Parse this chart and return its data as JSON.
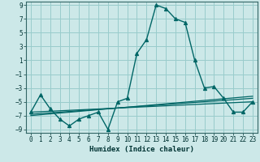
{
  "title": "",
  "xlabel": "Humidex (Indice chaleur)",
  "background_color": "#cce8e8",
  "grid_color": "#99cccc",
  "line_color": "#006666",
  "xlim": [
    -0.5,
    23.5
  ],
  "ylim": [
    -9.5,
    9.5
  ],
  "xticks": [
    0,
    1,
    2,
    3,
    4,
    5,
    6,
    7,
    8,
    9,
    10,
    11,
    12,
    13,
    14,
    15,
    16,
    17,
    18,
    19,
    20,
    21,
    22,
    23
  ],
  "yticks": [
    -9,
    -7,
    -5,
    -3,
    -1,
    1,
    3,
    5,
    7,
    9
  ],
  "x": [
    0,
    1,
    2,
    3,
    4,
    5,
    6,
    7,
    8,
    9,
    10,
    11,
    12,
    13,
    14,
    15,
    16,
    17,
    18,
    19,
    20,
    21,
    22,
    23
  ],
  "line_main": [
    -6.5,
    -4.0,
    -6.0,
    -7.5,
    -8.5,
    -7.5,
    -7.0,
    -6.5,
    -9.0,
    -5.0,
    -4.5,
    2.0,
    4.0,
    9.0,
    8.5,
    7.0,
    6.5,
    1.0,
    -3.0,
    -2.8,
    -4.5,
    -6.5,
    -6.5,
    -5.0
  ],
  "trend1_x": [
    0,
    23
  ],
  "trend1_y": [
    -6.5,
    -5.0
  ],
  "trend2_x": [
    0,
    23
  ],
  "trend2_y": [
    -6.8,
    -4.5
  ],
  "trend3_x": [
    0,
    23
  ],
  "trend3_y": [
    -7.0,
    -4.2
  ]
}
